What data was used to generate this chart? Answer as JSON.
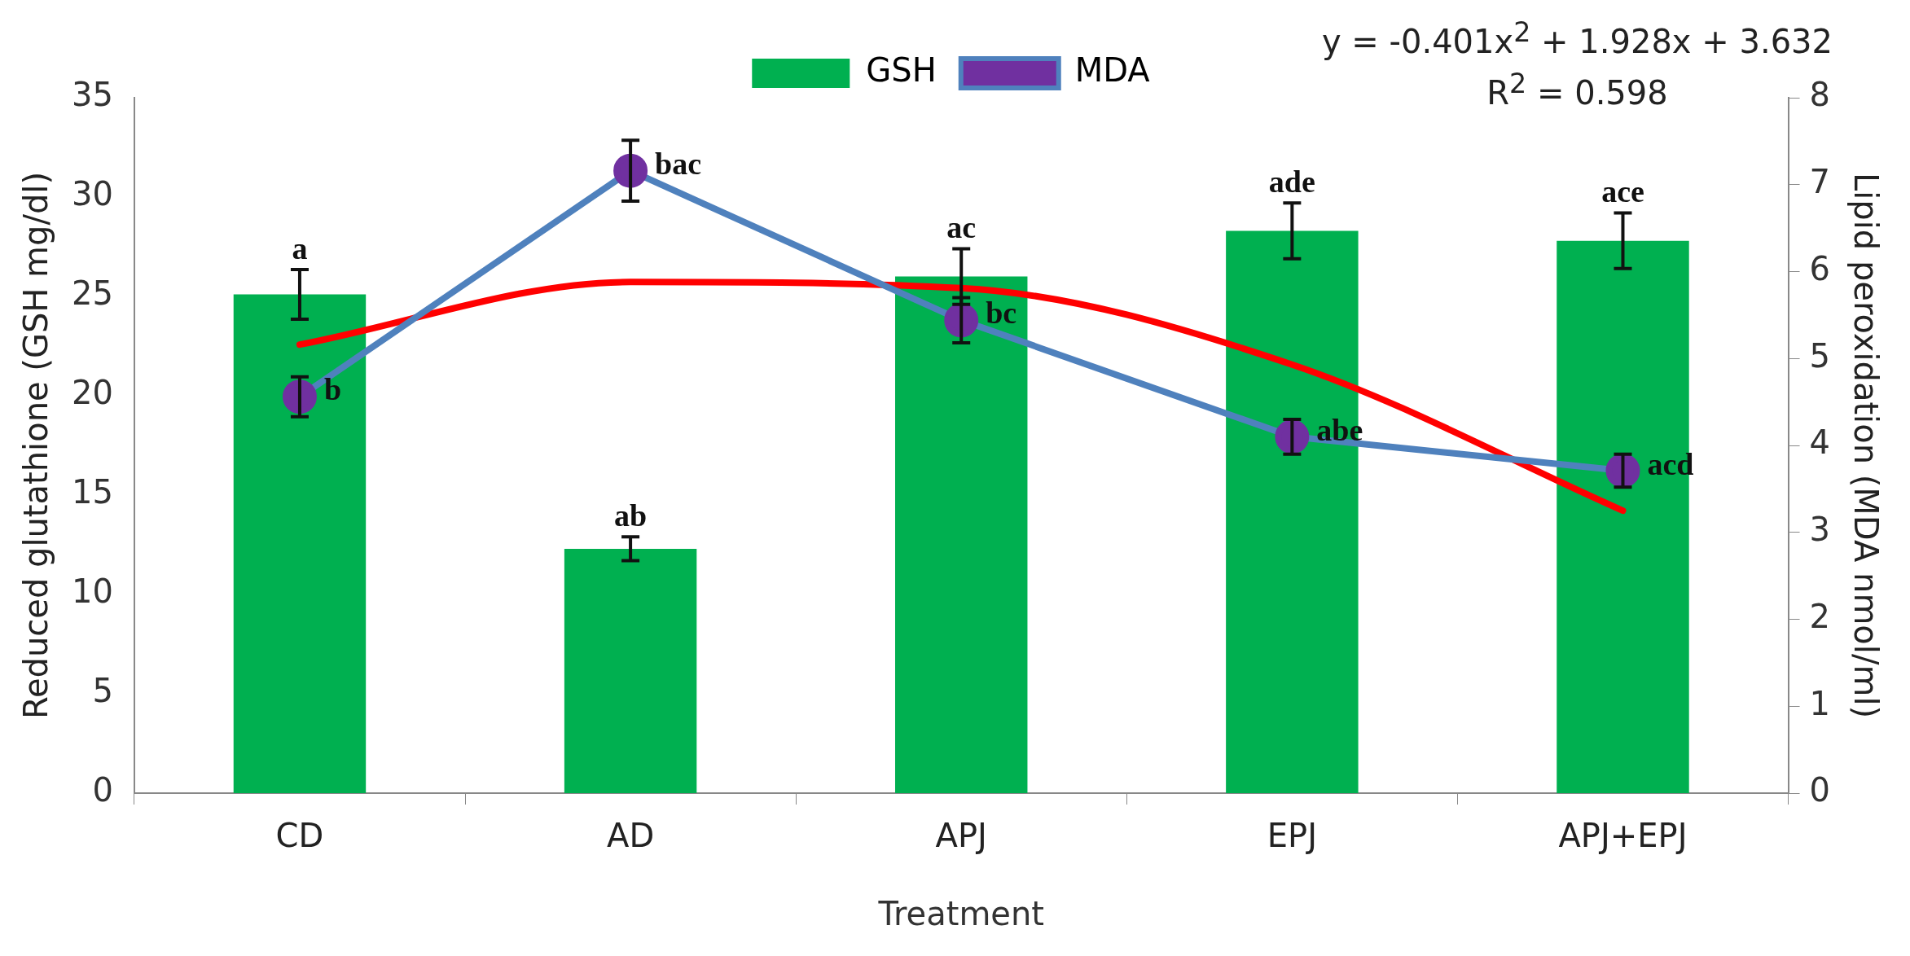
{
  "chart_data": {
    "type": "bar",
    "categories": [
      "CD",
      "AD",
      "APJ",
      "EPJ",
      "APJ+EPJ"
    ],
    "xlabel": "Treatment",
    "ylabel": "Reduced glutathione (GSH mg/dl)",
    "y2label": "Lipid peroxidation (MDA nmol/ml)",
    "ylim": [
      0,
      35
    ],
    "yticks": [
      0,
      5,
      10,
      15,
      20,
      25,
      30,
      35
    ],
    "y2lim": [
      0,
      8
    ],
    "y2ticks": [
      0,
      1,
      2,
      3,
      4,
      5,
      6,
      7,
      8
    ],
    "series": [
      {
        "name": "GSH",
        "color": "#00b050",
        "values": [
          25.1,
          12.3,
          26.0,
          28.3,
          27.8
        ],
        "errors": [
          1.25,
          0.6,
          1.4,
          1.4,
          1.4
        ]
      },
      {
        "name": "MDA",
        "type": "line",
        "axis": "y2",
        "color": "#4f81bd",
        "colors": [
          "#7030a0",
          "#7030a0",
          "#7030a0",
          "#7030a0",
          "#7030a0"
        ],
        "marker": "circle",
        "values": [
          4.56,
          7.16,
          5.44,
          4.1,
          3.71
        ],
        "errors": [
          0.23,
          0.35,
          0.26,
          0.2,
          0.19
        ]
      },
      {
        "type": "line",
        "axis": "y2",
        "color": "#ff0000",
        "marker": "none",
        "x": [
          "CD",
          "AD",
          "APJ",
          "EPJ",
          "APJ+EPJ"
        ],
        "values": [
          5.16,
          5.88,
          5.81,
          4.93,
          3.25
        ]
      }
    ],
    "annotations": [
      {
        "text": "a",
        "x": "CD",
        "y": 26.35
      },
      {
        "text": "ab",
        "x": "AD",
        "y": 12.9
      },
      {
        "text": "ac",
        "x": "APJ",
        "y": 27.4
      },
      {
        "text": "ade",
        "x": "EPJ",
        "y": 29.7
      },
      {
        "text": "ace",
        "x": "APJ+EPJ",
        "y": 29.2
      },
      {
        "text": "b",
        "x": "CD",
        "y": 19.95
      },
      {
        "text": "bac",
        "x": "AD",
        "y": 31.3
      },
      {
        "text": "bc",
        "x": "APJ",
        "y": 23.8
      },
      {
        "text": "abe",
        "x": "EPJ",
        "y": 17.9
      },
      {
        "text": "acd",
        "x": "APJ+EPJ",
        "y": 16.2
      },
      "y = -0.401x$^{2}$ + 1.928x + 3.632",
      "R$^{2}$ = 0.598"
    ],
    "legend": "top",
    "grid": false
  }
}
